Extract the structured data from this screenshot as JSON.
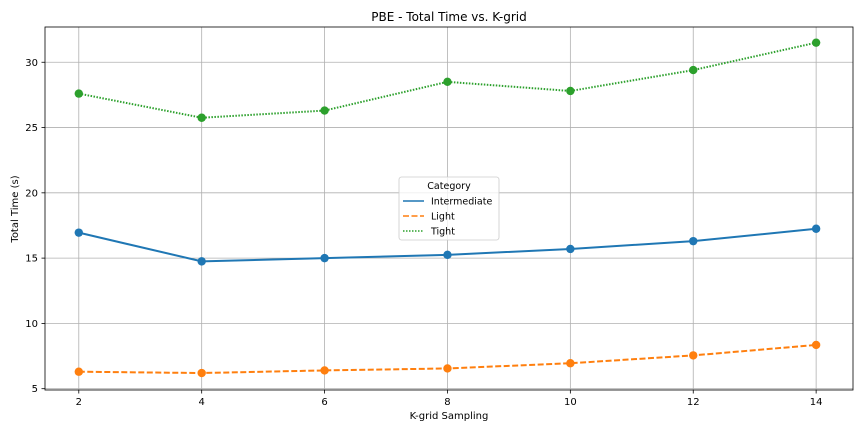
{
  "chart_data": {
    "type": "line",
    "title": "PBE - Total Time vs. K-grid",
    "xlabel": "K-grid Sampling",
    "ylabel": "Total Time (s)",
    "x": [
      2,
      4,
      6,
      8,
      10,
      12,
      14
    ],
    "xlim": [
      1.45,
      14.6
    ],
    "ylim": [
      4.9,
      32.7
    ],
    "xticks": [
      2,
      4,
      6,
      8,
      10,
      12,
      14
    ],
    "yticks": [
      5,
      10,
      15,
      20,
      25,
      30
    ],
    "grid": true,
    "legend": {
      "title": "Category",
      "placement": "center"
    },
    "series": [
      {
        "name": "Intermediate",
        "color": "#1f77b4",
        "dash": "solid",
        "values": [
          16.95,
          14.75,
          15.0,
          15.25,
          15.7,
          16.3,
          17.25
        ]
      },
      {
        "name": "Light",
        "color": "#ff7f0e",
        "dash": "dashed",
        "values": [
          6.3,
          6.2,
          6.4,
          6.55,
          6.95,
          7.55,
          8.35
        ]
      },
      {
        "name": "Tight",
        "color": "#2ca02c",
        "dash": "dotted",
        "values": [
          27.6,
          25.75,
          26.3,
          28.5,
          27.8,
          29.4,
          31.5
        ]
      }
    ]
  }
}
